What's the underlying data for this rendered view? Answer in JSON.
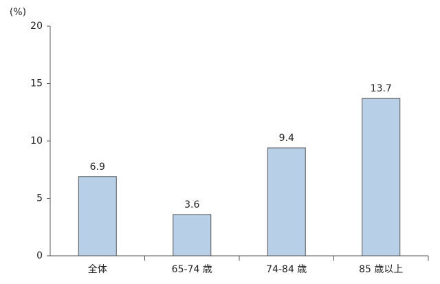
{
  "chart_data": {
    "type": "bar",
    "y_label": "(%)",
    "categories": [
      "全体",
      "65-74 歳",
      "74-84 歳",
      "85 歳以上"
    ],
    "values": [
      6.9,
      3.6,
      9.4,
      13.7
    ],
    "color": "#b8cfe8",
    "ylim": [
      0,
      20
    ],
    "yticks": [
      0,
      5,
      10,
      15,
      20
    ],
    "grid": false
  }
}
